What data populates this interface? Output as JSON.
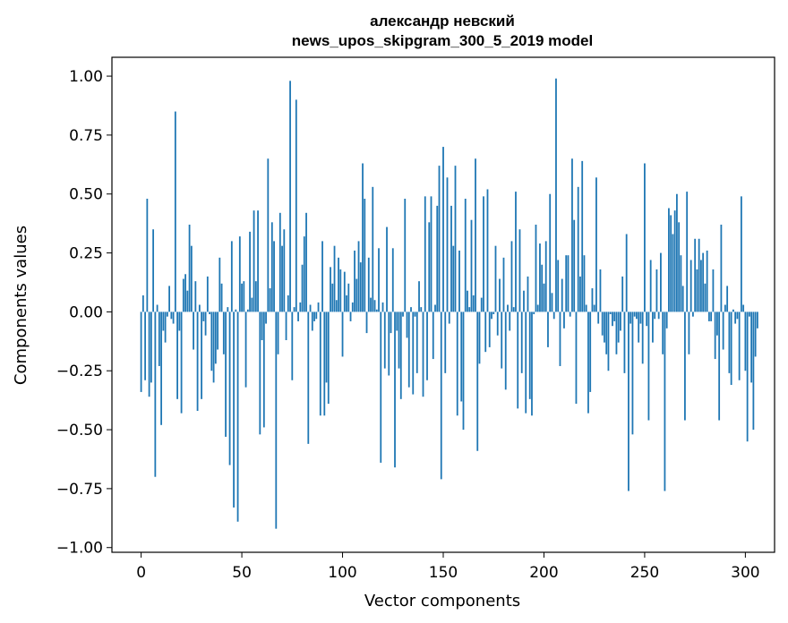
{
  "chart_data": {
    "type": "bar",
    "title": "александр невский",
    "subtitle": "news_upos_skipgram_300_5_2019 model",
    "xlabel": "Vector components",
    "ylabel": "Components values",
    "xlim": [
      -14.5,
      314.5
    ],
    "ylim": [
      -1.02,
      1.08
    ],
    "xticks": [
      0,
      50,
      100,
      150,
      200,
      250,
      300
    ],
    "yticks": [
      -1.0,
      -0.75,
      -0.5,
      -0.25,
      0.0,
      0.25,
      0.5,
      0.75,
      1.0
    ],
    "ytick_labels": [
      "−1.00",
      "−0.75",
      "−0.50",
      "−0.25",
      "0.00",
      "0.25",
      "0.50",
      "0.75",
      "1.00"
    ],
    "bar_color": "#1f77b4",
    "values": [
      -0.34,
      0.07,
      -0.29,
      0.48,
      -0.36,
      -0.3,
      0.35,
      -0.7,
      0.03,
      -0.23,
      -0.48,
      -0.08,
      -0.13,
      -0.02,
      0.11,
      -0.03,
      -0.05,
      0.85,
      -0.37,
      -0.08,
      -0.43,
      0.14,
      0.16,
      0.09,
      0.37,
      0.28,
      -0.16,
      0.13,
      -0.42,
      0.03,
      -0.37,
      -0.04,
      -0.1,
      0.15,
      -0.01,
      -0.25,
      -0.3,
      -0.22,
      -0.16,
      0.23,
      0.12,
      -0.18,
      -0.53,
      0.02,
      -0.65,
      0.3,
      -0.83,
      0.01,
      -0.89,
      0.32,
      0.12,
      0.13,
      -0.32,
      0.01,
      0.34,
      0.06,
      0.43,
      0.13,
      0.43,
      -0.52,
      -0.12,
      -0.49,
      -0.05,
      0.65,
      0.1,
      0.38,
      0.3,
      -0.92,
      -0.18,
      0.42,
      0.28,
      0.35,
      -0.12,
      0.07,
      0.98,
      -0.29,
      0.02,
      0.9,
      -0.04,
      0.04,
      0.2,
      0.32,
      0.42,
      -0.56,
      0.03,
      -0.08,
      -0.04,
      -0.03,
      0.04,
      -0.44,
      0.3,
      -0.44,
      -0.3,
      -0.39,
      0.19,
      0.12,
      0.28,
      0.05,
      0.23,
      0.18,
      -0.19,
      0.17,
      0.07,
      0.12,
      -0.04,
      0.04,
      0.26,
      0.14,
      0.3,
      0.21,
      0.63,
      0.48,
      -0.09,
      0.23,
      0.06,
      0.53,
      0.05,
      0.01,
      0.27,
      -0.64,
      0.04,
      -0.24,
      0.36,
      -0.27,
      -0.09,
      0.27,
      -0.66,
      -0.08,
      -0.24,
      -0.37,
      -0.02,
      0.48,
      -0.11,
      -0.32,
      0.02,
      -0.35,
      -0.02,
      -0.26,
      0.13,
      0.02,
      -0.36,
      0.49,
      -0.29,
      0.38,
      0.49,
      -0.2,
      0.03,
      0.45,
      0.62,
      -0.71,
      0.7,
      -0.26,
      0.57,
      -0.05,
      0.45,
      0.28,
      0.62,
      -0.44,
      0.26,
      -0.38,
      -0.5,
      0.48,
      0.09,
      0.02,
      0.39,
      0.07,
      0.65,
      -0.59,
      -0.22,
      0.06,
      0.49,
      -0.17,
      0.52,
      -0.15,
      -0.03,
      -0.01,
      0.28,
      -0.1,
      0.14,
      -0.24,
      0.23,
      -0.33,
      0.03,
      -0.08,
      0.3,
      0.02,
      0.51,
      -0.41,
      0.35,
      -0.26,
      0.09,
      -0.43,
      0.15,
      -0.37,
      -0.44,
      -0.01,
      0.37,
      0.03,
      0.29,
      0.2,
      0.12,
      0.3,
      -0.15,
      0.5,
      0.08,
      -0.03,
      0.99,
      0.22,
      -0.23,
      0.14,
      -0.07,
      0.24,
      0.24,
      -0.02,
      0.65,
      0.39,
      -0.39,
      0.53,
      0.15,
      0.64,
      0.24,
      0.03,
      -0.43,
      -0.34,
      0.1,
      0.03,
      0.57,
      -0.05,
      0.18,
      -0.1,
      -0.13,
      -0.18,
      -0.25,
      -0.01,
      -0.06,
      -0.04,
      -0.18,
      -0.13,
      -0.08,
      0.15,
      -0.26,
      0.33,
      -0.76,
      -0.05,
      -0.52,
      -0.02,
      -0.03,
      -0.13,
      -0.05,
      -0.22,
      0.63,
      -0.06,
      -0.46,
      0.22,
      -0.13,
      -0.03,
      0.18,
      -0.03,
      0.25,
      -0.18,
      -0.76,
      -0.07,
      0.44,
      0.41,
      0.33,
      0.43,
      0.5,
      0.38,
      0.24,
      0.11,
      -0.46,
      0.51,
      -0.18,
      0.22,
      -0.02,
      0.31,
      0.18,
      0.31,
      0.22,
      0.25,
      0.12,
      0.26,
      -0.04,
      -0.04,
      0.18,
      -0.2,
      -0.1,
      -0.46,
      0.37,
      -0.16,
      0.03,
      0.11,
      -0.26,
      -0.31,
      0.01,
      -0.05,
      -0.03,
      -0.29,
      0.49,
      0.03,
      -0.25,
      -0.55,
      -0.02,
      -0.3,
      -0.5,
      -0.19,
      -0.07
    ]
  }
}
